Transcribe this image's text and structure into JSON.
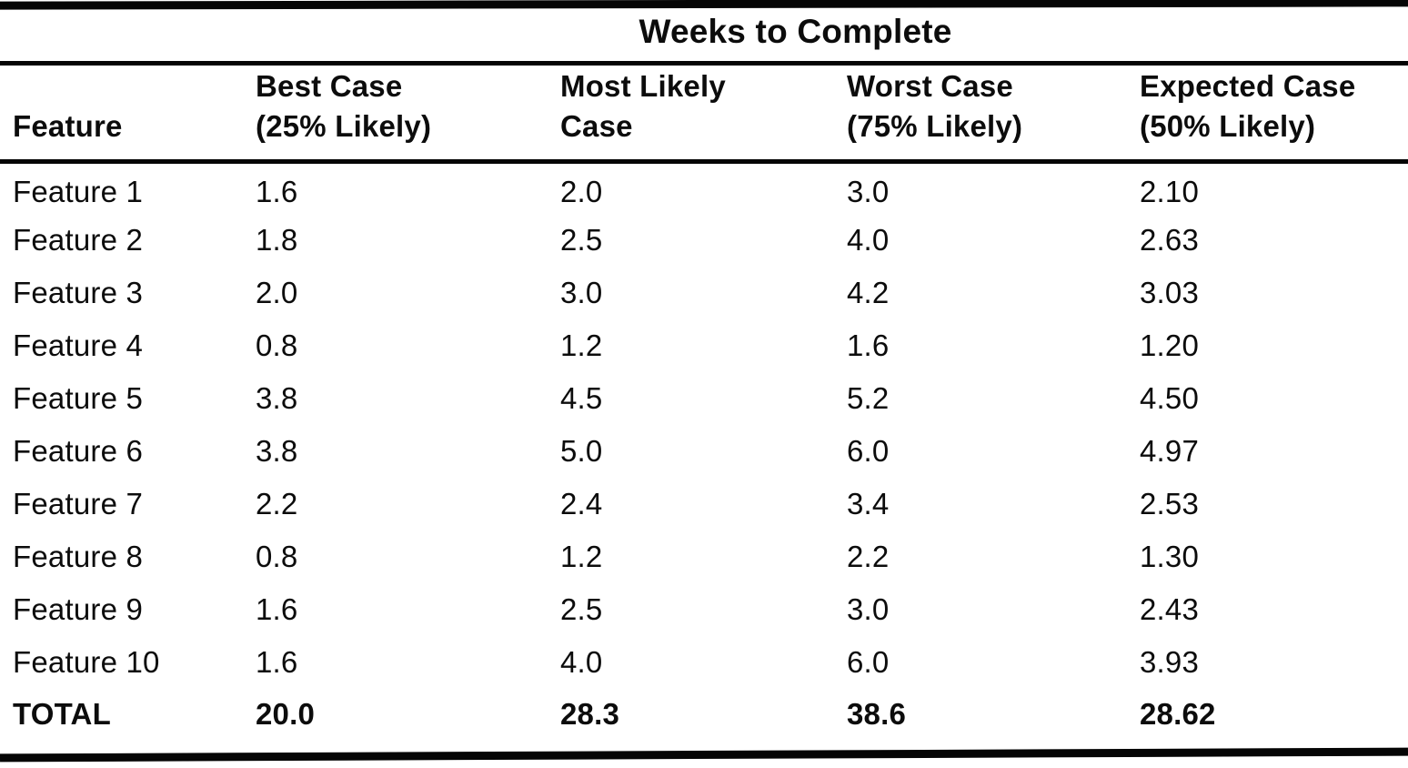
{
  "page": {
    "background": "#ffffff",
    "ink_color": "#0c0c0c"
  },
  "table": {
    "spanner": "Weeks to Complete",
    "feature_header": "Feature",
    "columns": [
      {
        "line1": "Best Case",
        "line2": "(25% Likely)"
      },
      {
        "line1": "Most Likely",
        "line2": "Case"
      },
      {
        "line1": "Worst Case",
        "line2": "(75% Likely)"
      },
      {
        "line1": "Expected Case",
        "line2": "(50% Likely)"
      }
    ],
    "rows": [
      {
        "feature": "Feature 1",
        "best": "1.6",
        "most_likely": "2.0",
        "worst": "3.0",
        "expected": "2.10"
      },
      {
        "feature": "Feature 2",
        "best": "1.8",
        "most_likely": "2.5",
        "worst": "4.0",
        "expected": "2.63"
      },
      {
        "feature": "Feature 3",
        "best": "2.0",
        "most_likely": "3.0",
        "worst": "4.2",
        "expected": "3.03"
      },
      {
        "feature": "Feature 4",
        "best": "0.8",
        "most_likely": "1.2",
        "worst": "1.6",
        "expected": "1.20"
      },
      {
        "feature": "Feature 5",
        "best": "3.8",
        "most_likely": "4.5",
        "worst": "5.2",
        "expected": "4.50"
      },
      {
        "feature": "Feature 6",
        "best": "3.8",
        "most_likely": "5.0",
        "worst": "6.0",
        "expected": "4.97"
      },
      {
        "feature": "Feature 7",
        "best": "2.2",
        "most_likely": "2.4",
        "worst": "3.4",
        "expected": "2.53"
      },
      {
        "feature": "Feature 8",
        "best": "0.8",
        "most_likely": "1.2",
        "worst": "2.2",
        "expected": "1.30"
      },
      {
        "feature": "Feature 9",
        "best": "1.6",
        "most_likely": "2.5",
        "worst": "3.0",
        "expected": "2.43"
      },
      {
        "feature": "Feature 10",
        "best": "1.6",
        "most_likely": "4.0",
        "worst": "6.0",
        "expected": "3.93"
      }
    ],
    "total_row": {
      "feature": "TOTAL",
      "best": "20.0",
      "most_likely": "28.3",
      "worst": "38.6",
      "expected": "28.62"
    }
  },
  "chart_data": {
    "type": "table",
    "title": "Weeks to Complete",
    "columns": [
      "Feature",
      "Best Case (25% Likely)",
      "Most Likely Case",
      "Worst Case (75% Likely)",
      "Expected Case (50% Likely)"
    ],
    "rows": [
      [
        "Feature 1",
        1.6,
        2.0,
        3.0,
        2.1
      ],
      [
        "Feature 2",
        1.8,
        2.5,
        4.0,
        2.63
      ],
      [
        "Feature 3",
        2.0,
        3.0,
        4.2,
        3.03
      ],
      [
        "Feature 4",
        0.8,
        1.2,
        1.6,
        1.2
      ],
      [
        "Feature 5",
        3.8,
        4.5,
        5.2,
        4.5
      ],
      [
        "Feature 6",
        3.8,
        5.0,
        6.0,
        4.97
      ],
      [
        "Feature 7",
        2.2,
        2.4,
        3.4,
        2.53
      ],
      [
        "Feature 8",
        0.8,
        1.2,
        2.2,
        1.3
      ],
      [
        "Feature 9",
        1.6,
        2.5,
        3.0,
        2.43
      ],
      [
        "Feature 10",
        1.6,
        4.0,
        6.0,
        3.93
      ],
      [
        "TOTAL",
        20.0,
        28.3,
        38.6,
        28.62
      ]
    ]
  }
}
